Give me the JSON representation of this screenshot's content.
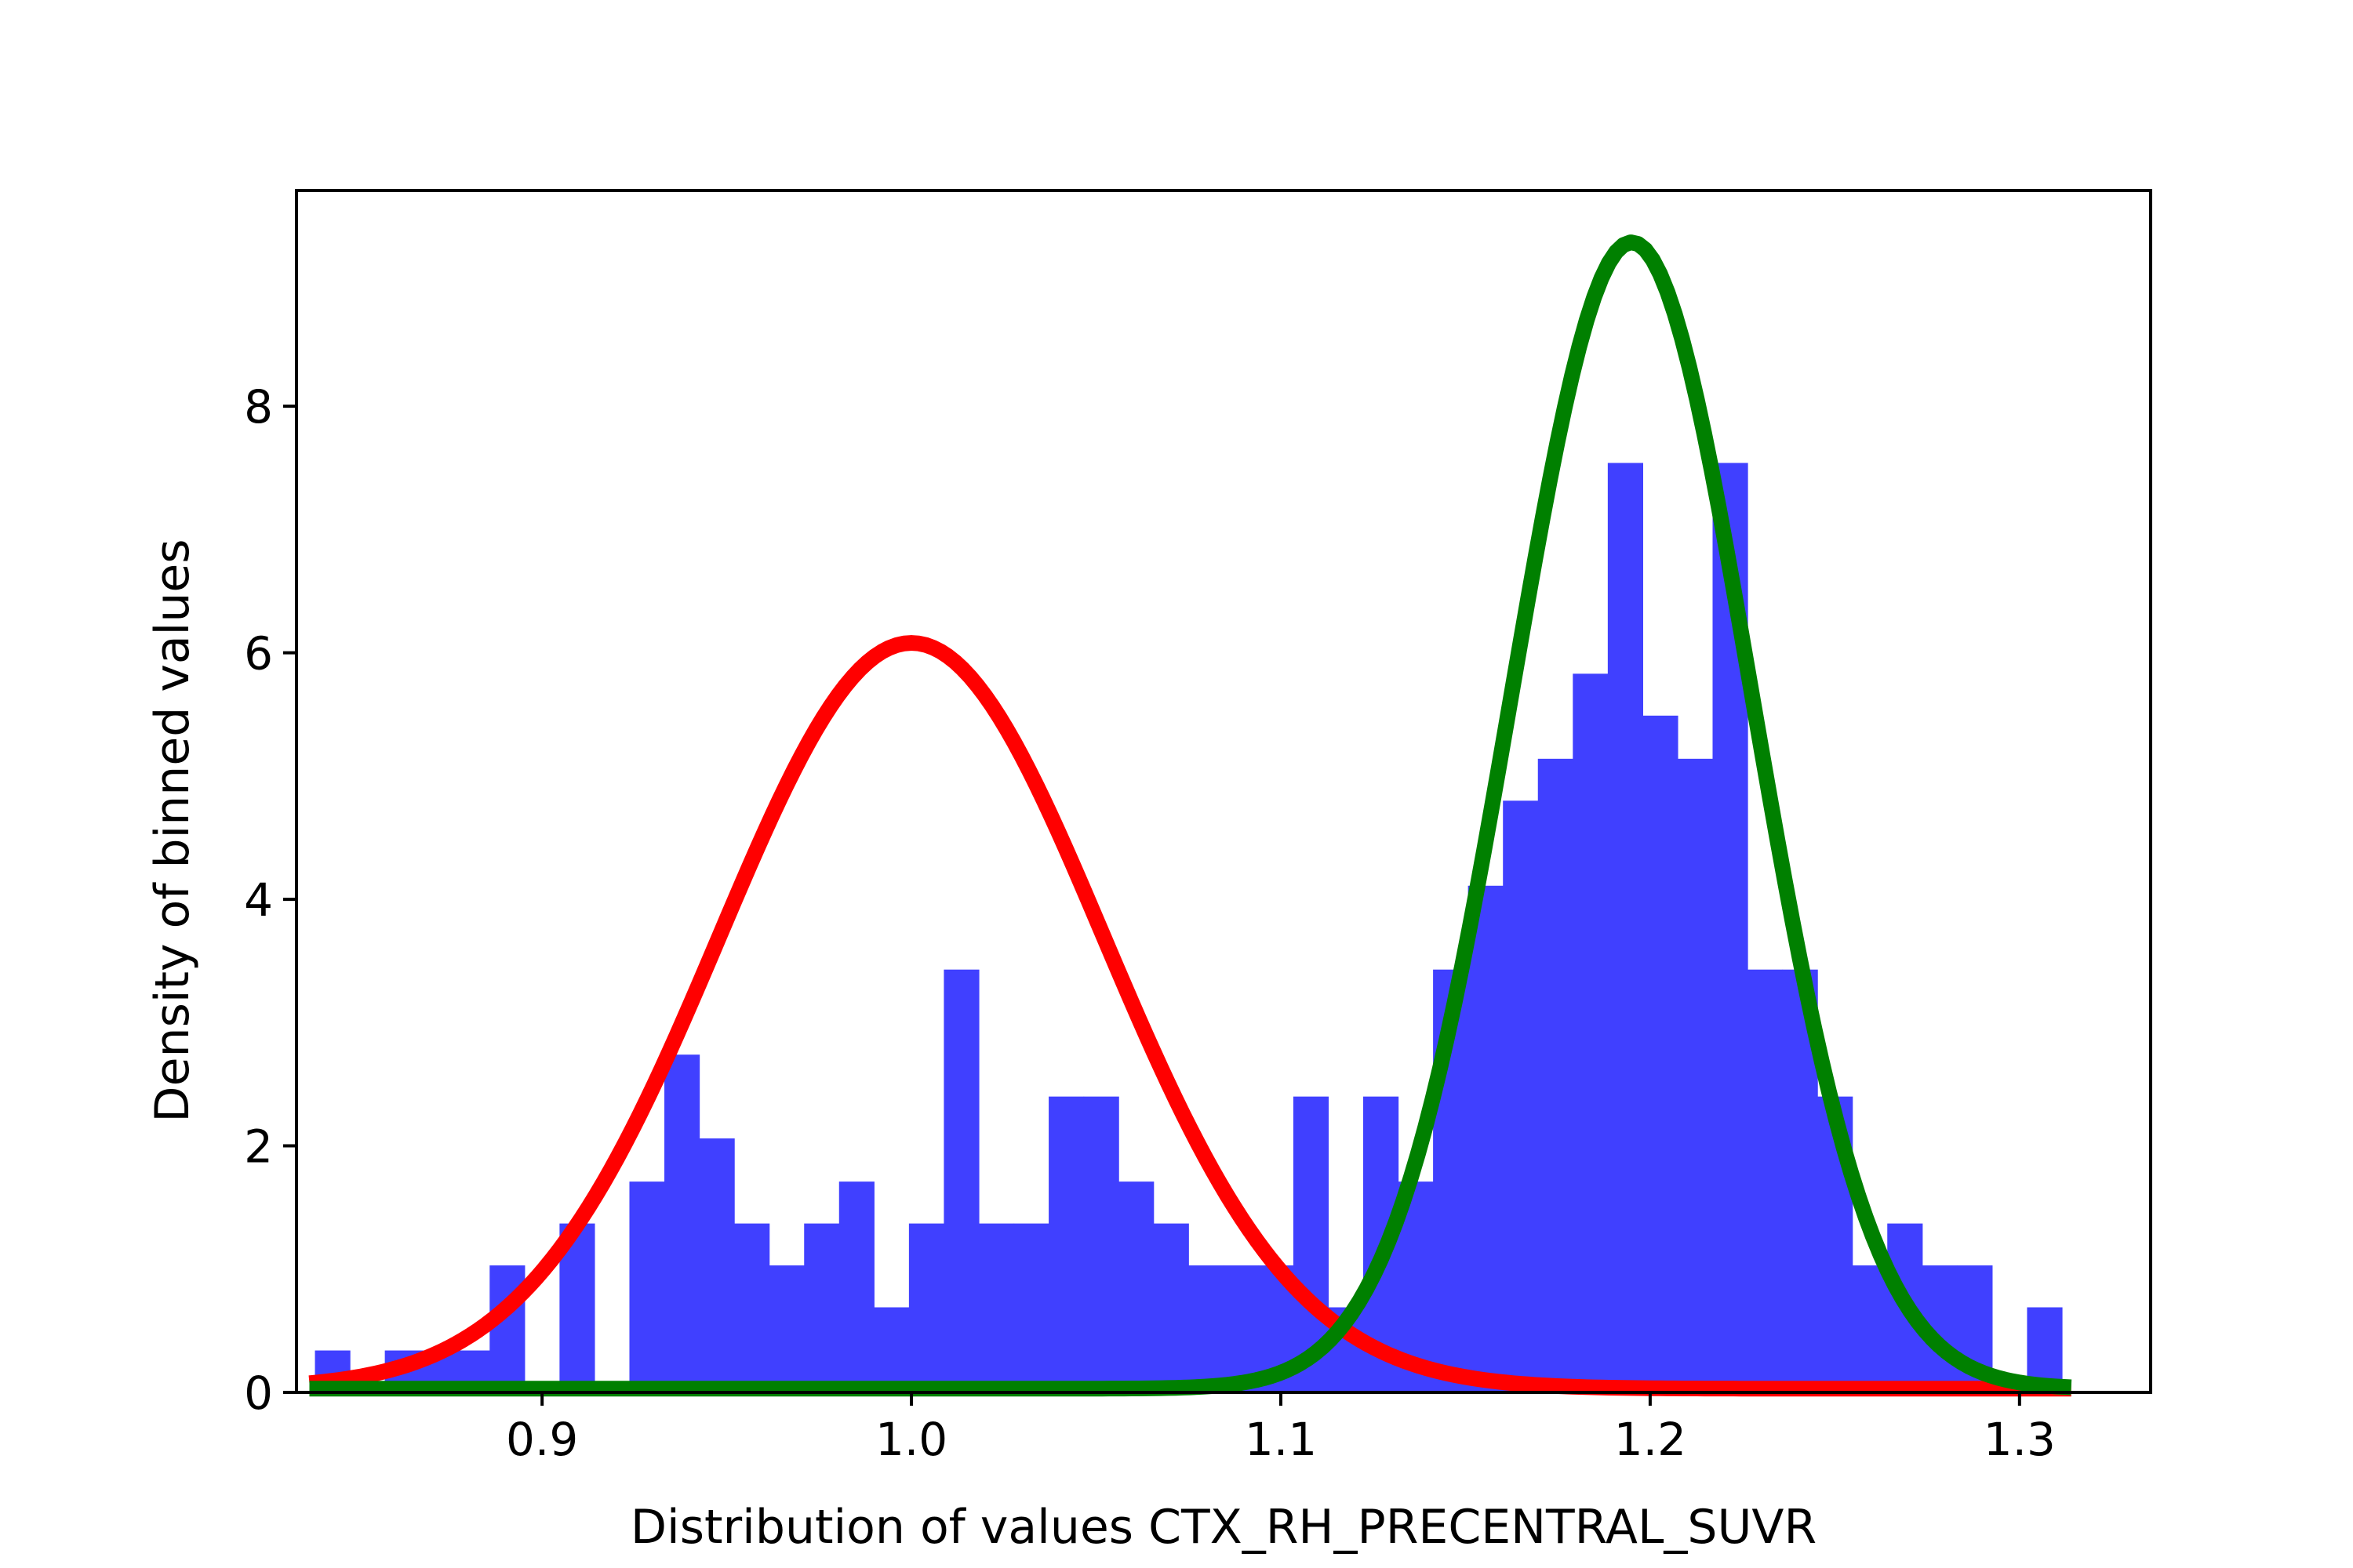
{
  "chart_data": {
    "type": "bar",
    "title": "",
    "xlabel": "Distribution of values CTX_RH_PRECENTRAL_SUVR",
    "ylabel": "Density of binned values",
    "xlim": [
      0.8335,
      1.3355
    ],
    "ylim": [
      0,
      9.75
    ],
    "xticks": [
      {
        "value": 0.9,
        "label": "0.9"
      },
      {
        "value": 1.0,
        "label": "1.0"
      },
      {
        "value": 1.1,
        "label": "1.1"
      },
      {
        "value": 1.2,
        "label": "1.2"
      },
      {
        "value": 1.3,
        "label": "1.3"
      }
    ],
    "yticks": [
      {
        "value": 0,
        "label": "0"
      },
      {
        "value": 2,
        "label": "2"
      },
      {
        "value": 4,
        "label": "4"
      },
      {
        "value": 6,
        "label": "6"
      },
      {
        "value": 8,
        "label": "8"
      }
    ],
    "grid": false,
    "histogram": {
      "color": "#4040ff",
      "bin_start": 0.8385,
      "bin_width": 0.00946,
      "values": [
        0.34,
        0,
        0.34,
        0.34,
        0.34,
        1.03,
        0,
        1.37,
        0,
        1.71,
        2.74,
        2.06,
        1.37,
        1.03,
        1.37,
        1.71,
        0.69,
        1.37,
        3.43,
        1.37,
        1.37,
        2.4,
        2.4,
        1.71,
        1.37,
        1.03,
        1.03,
        1.03,
        2.4,
        0.69,
        2.4,
        1.71,
        3.43,
        4.11,
        4.8,
        5.14,
        5.83,
        7.54,
        5.49,
        5.14,
        7.54,
        3.43,
        3.43,
        2.4,
        1.03,
        1.37,
        1.03,
        1.03,
        0,
        0.69
      ]
    },
    "curves": [
      {
        "color": "#ff0000",
        "mean": 1.0,
        "amplitude": 6.05,
        "sd": 0.052,
        "floor": 0.03,
        "x_start": 0.837,
        "x_end": 1.314
      },
      {
        "color": "#008000",
        "mean": 1.195,
        "amplitude": 9.3,
        "sd": 0.0325,
        "floor": 0.03,
        "x_start": 0.837,
        "x_end": 1.314
      }
    ]
  }
}
